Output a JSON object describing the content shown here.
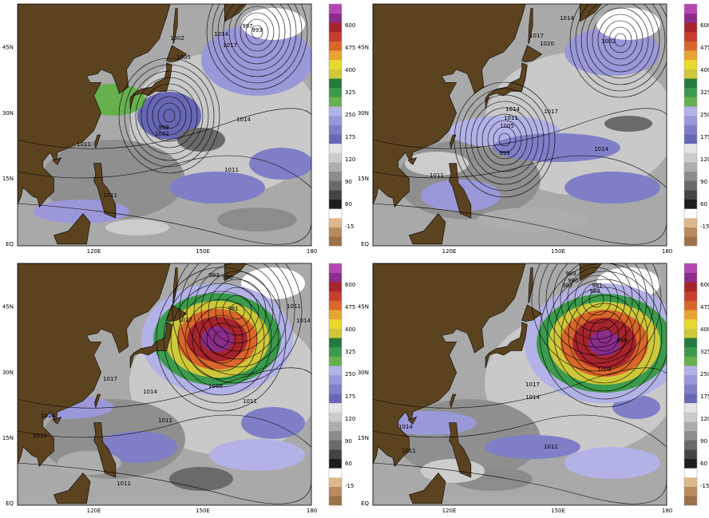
{
  "axes": {
    "y_labels": [
      "45N",
      "30N",
      "15N",
      "EQ"
    ],
    "x_labels": [
      "120E",
      "150E",
      "180"
    ]
  },
  "colorbar": {
    "labels": [
      "600",
      "475",
      "400",
      "325",
      "250",
      "175",
      "120",
      "90",
      "60",
      "-15"
    ],
    "colors": [
      "#9c7147",
      "#b88a5c",
      "#dcb88c",
      "#ffffff",
      "#1e1e1e",
      "#444444",
      "#6a6a6a",
      "#8c8c8c",
      "#adadad",
      "#cccccc",
      "#e4e4e4",
      "#6767b3",
      "#7f7ec6",
      "#9a98d8",
      "#b3b2e6",
      "#66b04e",
      "#3c9a4c",
      "#247a3e",
      "#cfc83a",
      "#e8d92f",
      "#e8a432",
      "#d9662b",
      "#c73d2e",
      "#a6242b",
      "#8a2d8a",
      "#b447b4"
    ]
  },
  "panels": [
    {
      "contour_labels": [
        997,
        993,
        1002,
        1005,
        1014,
        1017,
        1014,
        999,
        1002,
        1011,
        1011,
        1011
      ]
    },
    {
      "contour_labels": [
        1014,
        1017,
        1020,
        1002,
        1014,
        1011,
        1005,
        999,
        1017,
        1014,
        1011
      ]
    },
    {
      "contour_labels": [
        993,
        990,
        981,
        1017,
        1011,
        1014,
        1017,
        1014,
        1006,
        1011,
        1011,
        1014,
        1011,
        1011
      ]
    },
    {
      "contour_labels": [
        993,
        990,
        987,
        981,
        969,
        999,
        1008,
        1017,
        1014,
        1011,
        1014,
        1011
      ]
    }
  ]
}
